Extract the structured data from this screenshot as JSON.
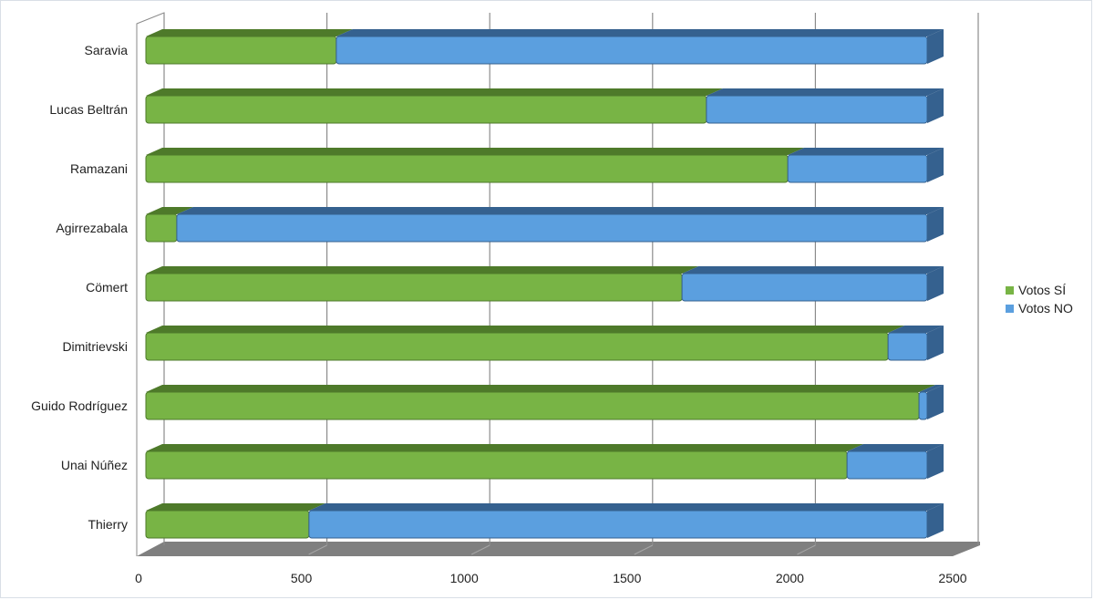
{
  "chart_data": {
    "type": "bar",
    "orientation": "horizontal",
    "stacked": true,
    "style": "3d",
    "title": "",
    "xlabel": "",
    "ylabel": "",
    "xlim": [
      0,
      2500
    ],
    "x_ticks": [
      "0",
      "500",
      "1000",
      "1500",
      "2000",
      "2500"
    ],
    "grid": true,
    "legend_position": "right",
    "categories": [
      "Saravia",
      "Lucas Beltrán",
      "Ramazani",
      "Agirrezabala",
      "Cömert",
      "Dimitrievski",
      "Guido Rodríguez",
      "Unai Núñez",
      "Thierry"
    ],
    "series": [
      {
        "name": "Votos SÍ",
        "color": "#78b445",
        "values": [
          585,
          1722,
          1972,
          95,
          1647,
          2280,
          2375,
          2154,
          501
        ]
      },
      {
        "name": "Votos NO",
        "color": "#5b9fdf",
        "values": [
          1815,
          678,
          428,
          2305,
          753,
          120,
          25,
          246,
          1899
        ]
      }
    ]
  },
  "legend": {
    "items": [
      {
        "label": "Votos SÍ",
        "color": "#78b445"
      },
      {
        "label": "Votos NO",
        "color": "#5b9fdf"
      }
    ]
  }
}
